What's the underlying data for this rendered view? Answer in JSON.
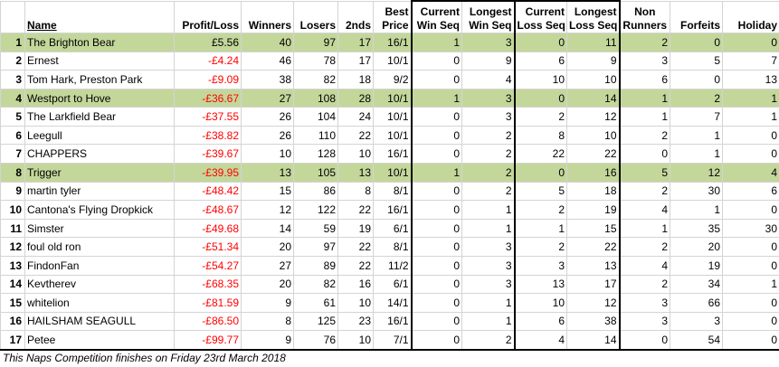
{
  "headers": {
    "name": "Name",
    "profit_loss": "Profit/Loss",
    "winners": "Winners",
    "losers": "Losers",
    "seconds": "2nds",
    "best_price": [
      "Best",
      "Price"
    ],
    "current_win_seq": [
      "Current",
      "Win Seq"
    ],
    "longest_win_seq": [
      "Longest",
      "Win Seq"
    ],
    "current_loss_seq": [
      "Current",
      "Loss Seq"
    ],
    "longest_loss_seq": [
      "Longest",
      "Loss Seq"
    ],
    "non_runners": [
      "Non",
      "Runners"
    ],
    "forfeits": "Forfeits",
    "holiday": "Holiday"
  },
  "rows": [
    {
      "rank": "1",
      "name": "The Brighton Bear",
      "pl": "£5.56",
      "neg": false,
      "winners": "40",
      "losers": "97",
      "seconds": "17",
      "best": "16/1",
      "cws": "1",
      "lws": "3",
      "cls": "0",
      "lls": "11",
      "nr": "2",
      "forfeits": "0",
      "holiday": "0",
      "highlight": true
    },
    {
      "rank": "2",
      "name": "Ernest",
      "pl": "-£4.24",
      "neg": true,
      "winners": "46",
      "losers": "78",
      "seconds": "17",
      "best": "10/1",
      "cws": "0",
      "lws": "9",
      "cls": "6",
      "lls": "9",
      "nr": "3",
      "forfeits": "5",
      "holiday": "7",
      "highlight": false
    },
    {
      "rank": "3",
      "name": "Tom Hark, Preston Park",
      "pl": "-£9.09",
      "neg": true,
      "winners": "38",
      "losers": "82",
      "seconds": "18",
      "best": "9/2",
      "cws": "0",
      "lws": "4",
      "cls": "10",
      "lls": "10",
      "nr": "6",
      "forfeits": "0",
      "holiday": "13",
      "highlight": false
    },
    {
      "rank": "4",
      "name": "Westport to Hove",
      "pl": "-£36.67",
      "neg": true,
      "winners": "27",
      "losers": "108",
      "seconds": "28",
      "best": "10/1",
      "cws": "1",
      "lws": "3",
      "cls": "0",
      "lls": "14",
      "nr": "1",
      "forfeits": "2",
      "holiday": "1",
      "highlight": true
    },
    {
      "rank": "5",
      "name": "The Larkfield Bear",
      "pl": "-£37.55",
      "neg": true,
      "winners": "26",
      "losers": "104",
      "seconds": "24",
      "best": "10/1",
      "cws": "0",
      "lws": "3",
      "cls": "2",
      "lls": "12",
      "nr": "1",
      "forfeits": "7",
      "holiday": "1",
      "highlight": false
    },
    {
      "rank": "6",
      "name": "Leegull",
      "pl": "-£38.82",
      "neg": true,
      "winners": "26",
      "losers": "110",
      "seconds": "22",
      "best": "10/1",
      "cws": "0",
      "lws": "2",
      "cls": "8",
      "lls": "10",
      "nr": "2",
      "forfeits": "1",
      "holiday": "0",
      "highlight": false
    },
    {
      "rank": "7",
      "name": "CHAPPERS",
      "pl": "-£39.67",
      "neg": true,
      "winners": "10",
      "losers": "128",
      "seconds": "10",
      "best": "16/1",
      "cws": "0",
      "lws": "2",
      "cls": "22",
      "lls": "22",
      "nr": "0",
      "forfeits": "1",
      "holiday": "0",
      "highlight": false
    },
    {
      "rank": "8",
      "name": "Trigger",
      "pl": "-£39.95",
      "neg": true,
      "winners": "13",
      "losers": "105",
      "seconds": "13",
      "best": "10/1",
      "cws": "1",
      "lws": "2",
      "cls": "0",
      "lls": "16",
      "nr": "5",
      "forfeits": "12",
      "holiday": "4",
      "highlight": true
    },
    {
      "rank": "9",
      "name": "martin tyler",
      "pl": "-£48.42",
      "neg": true,
      "winners": "15",
      "losers": "86",
      "seconds": "8",
      "best": "8/1",
      "cws": "0",
      "lws": "2",
      "cls": "5",
      "lls": "18",
      "nr": "2",
      "forfeits": "30",
      "holiday": "6",
      "highlight": false
    },
    {
      "rank": "10",
      "name": "Cantona's Flying Dropkick",
      "pl": "-£48.67",
      "neg": true,
      "winners": "12",
      "losers": "122",
      "seconds": "22",
      "best": "16/1",
      "cws": "0",
      "lws": "1",
      "cls": "2",
      "lls": "19",
      "nr": "4",
      "forfeits": "1",
      "holiday": "0",
      "highlight": false
    },
    {
      "rank": "11",
      "name": "Simster",
      "pl": "-£49.68",
      "neg": true,
      "winners": "14",
      "losers": "59",
      "seconds": "19",
      "best": "6/1",
      "cws": "0",
      "lws": "1",
      "cls": "1",
      "lls": "15",
      "nr": "1",
      "forfeits": "35",
      "holiday": "30",
      "highlight": false
    },
    {
      "rank": "12",
      "name": "foul old ron",
      "pl": "-£51.34",
      "neg": true,
      "winners": "20",
      "losers": "97",
      "seconds": "22",
      "best": "8/1",
      "cws": "0",
      "lws": "3",
      "cls": "2",
      "lls": "22",
      "nr": "2",
      "forfeits": "20",
      "holiday": "0",
      "highlight": false
    },
    {
      "rank": "13",
      "name": "FindonFan",
      "pl": "-£54.27",
      "neg": true,
      "winners": "27",
      "losers": "89",
      "seconds": "22",
      "best": "11/2",
      "cws": "0",
      "lws": "3",
      "cls": "3",
      "lls": "13",
      "nr": "4",
      "forfeits": "19",
      "holiday": "0",
      "highlight": false
    },
    {
      "rank": "14",
      "name": "Kevtherev",
      "pl": "-£68.35",
      "neg": true,
      "winners": "20",
      "losers": "82",
      "seconds": "16",
      "best": "6/1",
      "cws": "0",
      "lws": "3",
      "cls": "13",
      "lls": "17",
      "nr": "2",
      "forfeits": "34",
      "holiday": "1",
      "highlight": false
    },
    {
      "rank": "15",
      "name": "whitelion",
      "pl": "-£81.59",
      "neg": true,
      "winners": "9",
      "losers": "61",
      "seconds": "10",
      "best": "14/1",
      "cws": "0",
      "lws": "1",
      "cls": "10",
      "lls": "12",
      "nr": "3",
      "forfeits": "66",
      "holiday": "0",
      "highlight": false
    },
    {
      "rank": "16",
      "name": "HAILSHAM SEAGULL",
      "pl": "-£86.50",
      "neg": true,
      "winners": "8",
      "losers": "125",
      "seconds": "23",
      "best": "16/1",
      "cws": "0",
      "lws": "1",
      "cls": "6",
      "lls": "38",
      "nr": "3",
      "forfeits": "3",
      "holiday": "0",
      "highlight": false
    },
    {
      "rank": "17",
      "name": "Petee",
      "pl": "-£99.77",
      "neg": true,
      "winners": "9",
      "losers": "76",
      "seconds": "10",
      "best": "7/1",
      "cws": "0",
      "lws": "2",
      "cls": "4",
      "lls": "14",
      "nr": "0",
      "forfeits": "54",
      "holiday": "0",
      "highlight": false
    }
  ],
  "footer": "This Naps Competition finishes on Friday 23rd March 2018"
}
